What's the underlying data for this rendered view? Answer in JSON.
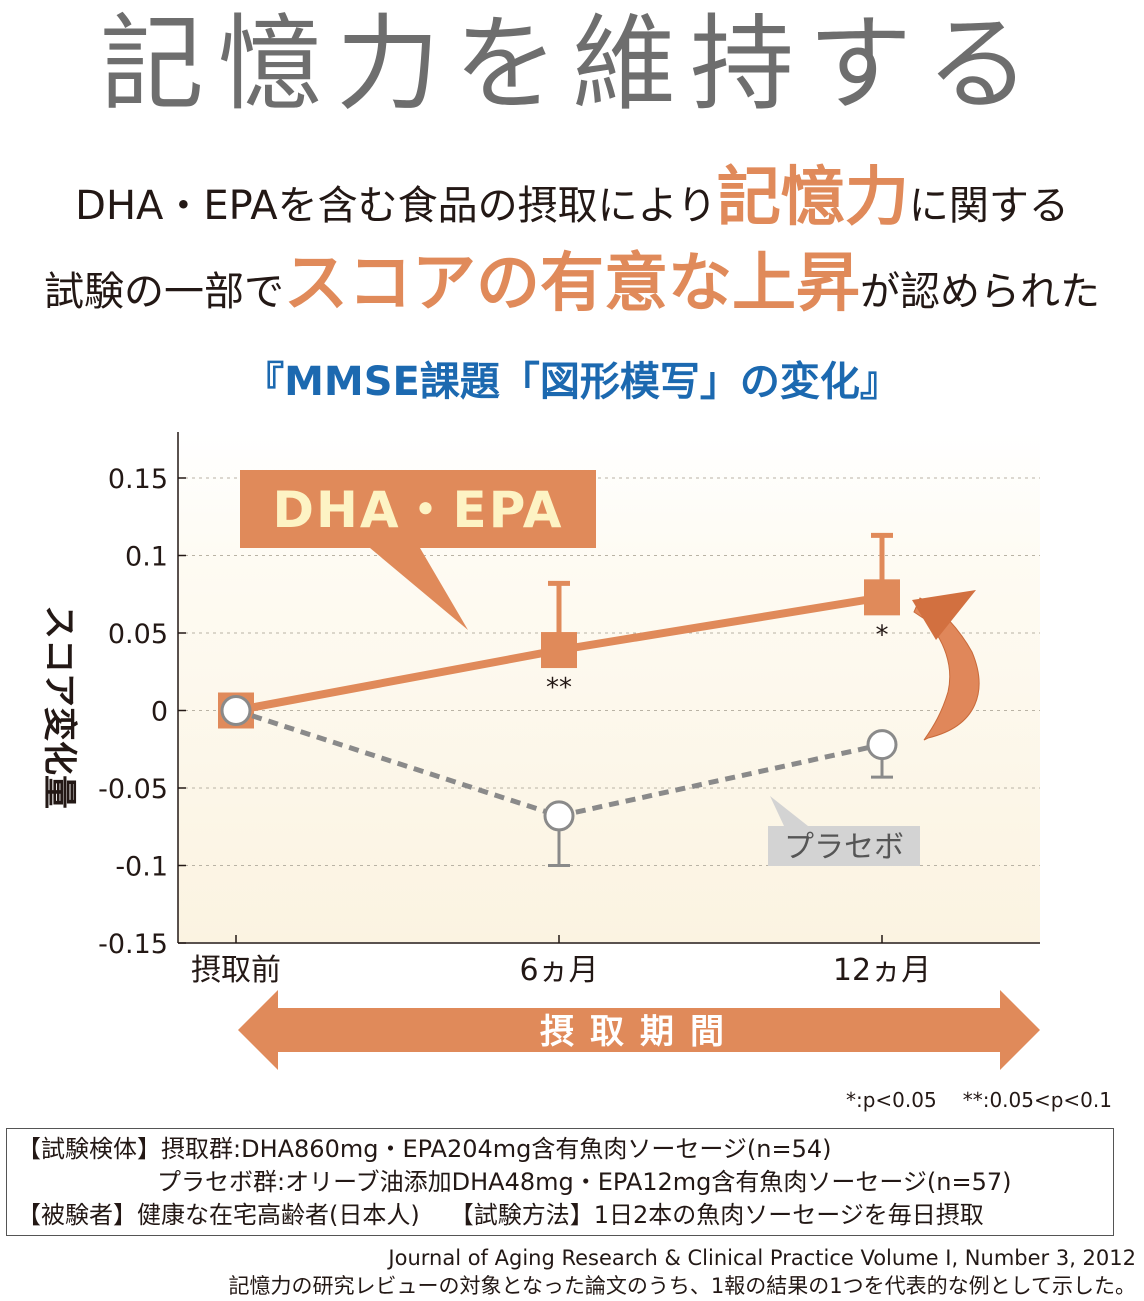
{
  "headline": "記憶力を維持する",
  "subtitle": {
    "line1_pre": "DHA・EPAを含む食品の摂取により",
    "line1_hl": "記憶力",
    "line1_post": "に関する",
    "line2_pre": "試験の一部で",
    "line2_hl": "スコアの有意な上昇",
    "line2_post": "が認められた"
  },
  "colors": {
    "accent": "#e08a5a",
    "title_blue": "#1c69b0",
    "placebo_gray": "#8a8a8a",
    "plot_bg": "#fdf7ea"
  },
  "chart_data": {
    "type": "line",
    "title": "『MMSE課題「図形模写」の変化』",
    "ylabel": "スコア変化量",
    "xlabel": "摂取期間",
    "categories": [
      "摂取前",
      "6ヵ月",
      "12ヵ月"
    ],
    "ylim": [
      -0.15,
      0.15
    ],
    "yticks": [
      "0.15",
      "0.1",
      "0.05",
      "0",
      "-0.05",
      "-0.1",
      "-0.15"
    ],
    "ytick_values": [
      0.15,
      0.1,
      0.05,
      0,
      -0.05,
      -0.1,
      -0.15
    ],
    "grid": true,
    "series": [
      {
        "name": "DHA・EPA",
        "values": [
          0,
          0.039,
          0.073
        ],
        "error_upper": [
          0,
          0.082,
          0.113
        ],
        "marks": [
          "",
          "**",
          "*"
        ],
        "color": "#e08a5a",
        "style": "solid"
      },
      {
        "name": "プラセボ",
        "values": [
          0,
          -0.068,
          -0.022
        ],
        "error_lower": [
          0,
          -0.1,
          -0.043
        ],
        "color": "#8a8a8a",
        "style": "dashed"
      }
    ]
  },
  "significance_note": {
    "p1": "*:p<0.05",
    "p2": "**:0.05<p<0.1"
  },
  "study_info": {
    "line1": "【試験検体】摂取群:DHA860mg・EPA204mg含有魚肉ソーセージ(n=54)",
    "line2": "プラセボ群:オリーブ油添加DHA48mg・EPA12mg含有魚肉ソーセージ(n=57)",
    "line3a": "【被験者】健康な在宅高齢者(日本人)",
    "line3b": "【試験方法】1日2本の魚肉ソーセージを毎日摂取"
  },
  "source": {
    "citation": "Journal of Aging Research & Clinical Practice  Volume I, Number 3, 2012",
    "note": "記憶力の研究レビューの対象となった論文のうち、1報の結果の1つを代表的な例として示した。"
  }
}
